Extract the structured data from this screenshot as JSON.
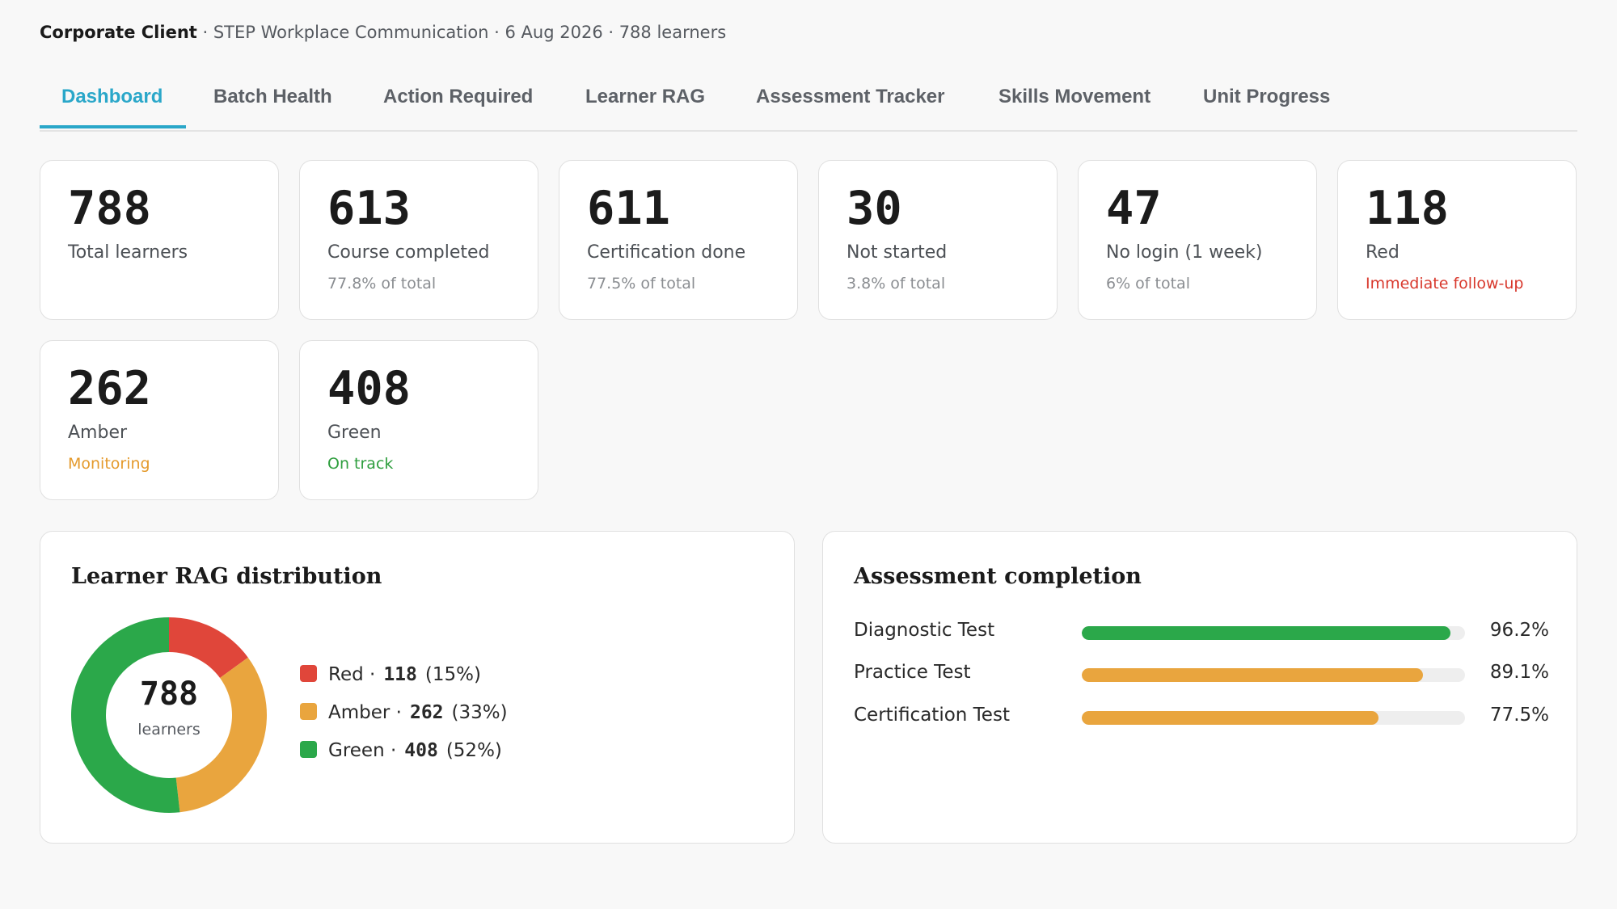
{
  "header": {
    "client": "Corporate Client",
    "details": " · STEP Workplace Communication · 6 Aug 2026 · 788 learners"
  },
  "tabs": [
    {
      "label": "Dashboard",
      "active": true
    },
    {
      "label": "Batch Health",
      "active": false
    },
    {
      "label": "Action Required",
      "active": false
    },
    {
      "label": "Learner RAG",
      "active": false
    },
    {
      "label": "Assessment Tracker",
      "active": false
    },
    {
      "label": "Skills Movement",
      "active": false
    },
    {
      "label": "Unit Progress",
      "active": false
    }
  ],
  "stats": [
    {
      "value": "788",
      "label": "Total learners",
      "sub": ""
    },
    {
      "value": "613",
      "label": "Course completed",
      "sub": "77.8% of total"
    },
    {
      "value": "611",
      "label": "Certification done",
      "sub": "77.5% of total"
    },
    {
      "value": "30",
      "label": "Not started",
      "sub": "3.8% of total"
    },
    {
      "value": "47",
      "label": "No login (1 week)",
      "sub": "6% of total"
    },
    {
      "value": "118",
      "label": "Red",
      "sub": "Immediate follow-up",
      "sub_color": "#d8382c"
    },
    {
      "value": "262",
      "label": "Amber",
      "sub": "Monitoring",
      "sub_color": "#e49a2c"
    },
    {
      "value": "408",
      "label": "Green",
      "sub": "On track",
      "sub_color": "#2e9e3e"
    }
  ],
  "rag_panel": {
    "title": "Learner RAG distribution",
    "center_value": "788",
    "center_label": "learners",
    "legend": [
      {
        "name": "Red ·",
        "count": "118",
        "pct": "(15%)",
        "color": "#e0463a"
      },
      {
        "name": "Amber ·",
        "count": "262",
        "pct": "(33%)",
        "color": "#e9a53e"
      },
      {
        "name": "Green ·",
        "count": "408",
        "pct": "(52%)",
        "color": "#2ba84a"
      }
    ]
  },
  "assessment_panel": {
    "title": "Assessment completion",
    "rows": [
      {
        "label": "Diagnostic Test",
        "value": "96.2%",
        "fraction": 0.962,
        "color": "#2ba84a"
      },
      {
        "label": "Practice Test",
        "value": "89.1%",
        "fraction": 0.891,
        "color": "#e9a53e"
      },
      {
        "label": "Certification Test",
        "value": "77.5%",
        "fraction": 0.775,
        "color": "#e9a53e"
      }
    ]
  },
  "chart_data": [
    {
      "type": "pie",
      "title": "Learner RAG distribution",
      "categories": [
        "Red",
        "Amber",
        "Green"
      ],
      "values": [
        118,
        262,
        408
      ],
      "colors": [
        "#e0463a",
        "#e9a53e",
        "#2ba84a"
      ],
      "center_text": "788 learners",
      "legend": "right"
    },
    {
      "type": "bar",
      "title": "Assessment completion",
      "orientation": "horizontal",
      "categories": [
        "Diagnostic Test",
        "Practice Test",
        "Certification Test"
      ],
      "values": [
        96.2,
        89.1,
        77.5
      ],
      "ylim": [
        0,
        100
      ]
    }
  ]
}
